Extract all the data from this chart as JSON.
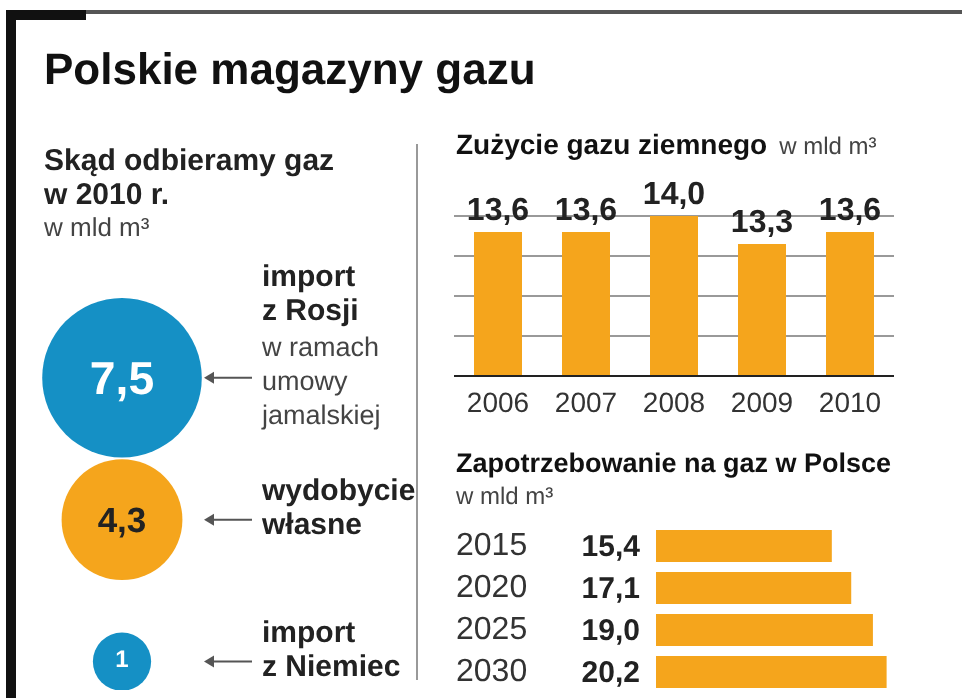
{
  "chart_data": [
    {
      "type": "other",
      "title": "Polskie magazyny gazu",
      "subtitle": "Skąd odbieramy gaz w 2010 r.",
      "ylabel": "w mld m³",
      "categories": [
        "import z Rosji",
        "wydobycie własne",
        "import z Niemiec"
      ],
      "values": [
        7.5,
        4.3,
        1
      ],
      "colors": [
        "#1590c5",
        "#f5a51c",
        "#1590c5"
      ],
      "value_labels": [
        "7,5",
        "4,3",
        "1"
      ],
      "annotations": [
        "w ramach umowy jamalskiej"
      ]
    },
    {
      "type": "bar",
      "title": "Zużycie gazu ziemnego",
      "ylabel": "w mld m³",
      "categories": [
        "2006",
        "2007",
        "2008",
        "2009",
        "2010"
      ],
      "values": [
        13.6,
        13.6,
        14.0,
        13.3,
        13.6
      ],
      "color": "#f5a51c",
      "value_labels": [
        "13,6",
        "13,6",
        "14,0",
        "13,3",
        "13,6"
      ],
      "ylim": [
        10,
        14
      ],
      "yticks": [
        {
          "value": 10,
          "label": null
        },
        {
          "value": 11,
          "label": null
        },
        {
          "value": 12,
          "label": null
        },
        {
          "value": 13,
          "label": null
        },
        {
          "value": 14,
          "label": null
        }
      ],
      "grid": "y",
      "tick_labels": "x"
    },
    {
      "type": "bar",
      "orientation": "horizontal",
      "title": "Zapotrzebowanie na gaz w Polsce",
      "xlabel": "w mld m³",
      "categories": [
        "2015",
        "2020",
        "2025",
        "2030"
      ],
      "values": [
        15.4,
        17.1,
        19.0,
        20.2
      ],
      "color": "#f5a51c",
      "value_labels": [
        "15,4",
        "17,1",
        "19,0",
        "20,2"
      ],
      "tick_labels": "y"
    }
  ]
}
